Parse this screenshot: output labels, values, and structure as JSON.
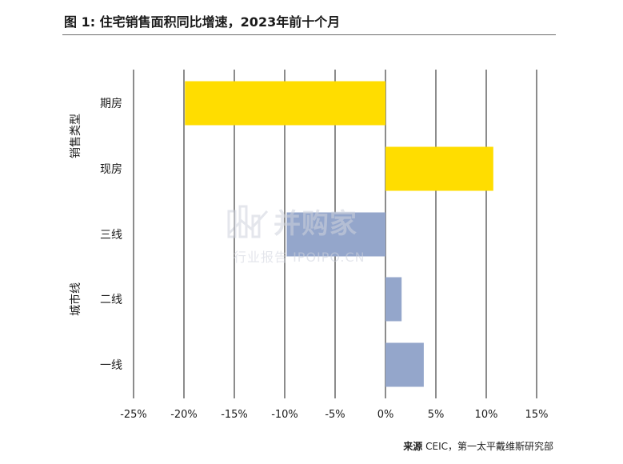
{
  "title": "图 1: 住宅销售面积同比增速，2023年前十个月",
  "source": {
    "label": "来源",
    "text": " CEIC，第一太平戴维斯研究部"
  },
  "watermark": {
    "main": "并购家",
    "sub": "行业报告 IPOIPO.CN"
  },
  "colors": {
    "yellow": "#FFDD00",
    "blue": "#94A6CB",
    "grid": "#1a1a1a"
  },
  "chart_data": {
    "type": "bar",
    "orientation": "horizontal",
    "categories": [
      "期房",
      "现房",
      "三线",
      "二线",
      "一线"
    ],
    "groups": [
      {
        "label": "销售类型",
        "categories": [
          "期房",
          "现房"
        ]
      },
      {
        "label": "城市线",
        "categories": [
          "三线",
          "二线",
          "一线"
        ]
      }
    ],
    "values": [
      -19.9,
      10.7,
      -9.8,
      1.6,
      3.8
    ],
    "xlim": [
      -25,
      15
    ],
    "xticks": [
      -25,
      -20,
      -15,
      -10,
      -5,
      0,
      5,
      10,
      15
    ],
    "xtick_labels": [
      "-25%",
      "-20%",
      "-15%",
      "-10%",
      "-5%",
      "0%",
      "5%",
      "10%",
      "15%"
    ],
    "grid": "vertical"
  }
}
